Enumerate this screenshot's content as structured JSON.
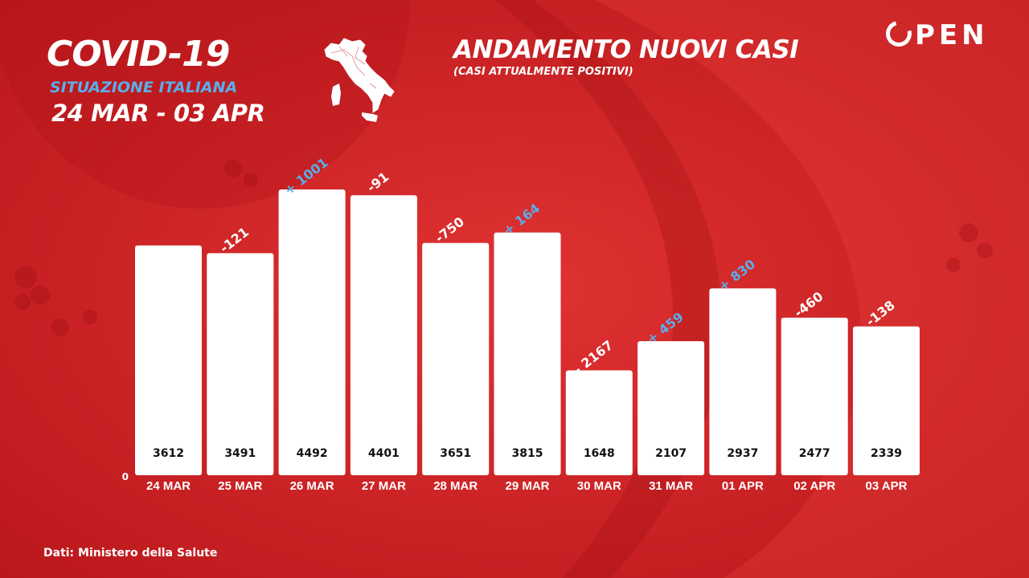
{
  "header": {
    "title": "COVID-19",
    "subtitle": "SITUAZIONE ITALIANA",
    "date_range": "24 MAR - 03 APR"
  },
  "logo": {
    "text": "PEN"
  },
  "source": "Dati: Ministero della Salute",
  "colors": {
    "background": "#d9282a",
    "bar": "#ffffff",
    "increase": "#5aaeea",
    "decrease": "#ffffff",
    "value_text": "#111111"
  },
  "chart_data": {
    "type": "bar",
    "title": "ANDAMENTO NUOVI CASI",
    "subtitle": "(CASI ATTUALMENTE POSITIVI)",
    "categories": [
      "24 MAR",
      "25 MAR",
      "26 MAR",
      "27 MAR",
      "28 MAR",
      "29 MAR",
      "30 MAR",
      "31 MAR",
      "01 APR",
      "02 APR",
      "03 APR"
    ],
    "values": [
      3612,
      3491,
      4492,
      4401,
      3651,
      3815,
      1648,
      2107,
      2937,
      2477,
      2339
    ],
    "changes": [
      "",
      "-121",
      "+ 1001",
      "-91",
      "-750",
      "+ 164",
      "- 2167",
      "+ 459",
      "+ 830",
      "-460",
      "-138"
    ],
    "y_zero_label": "0",
    "ylim": [
      0,
      4492
    ],
    "grid": false,
    "legend": "none"
  }
}
